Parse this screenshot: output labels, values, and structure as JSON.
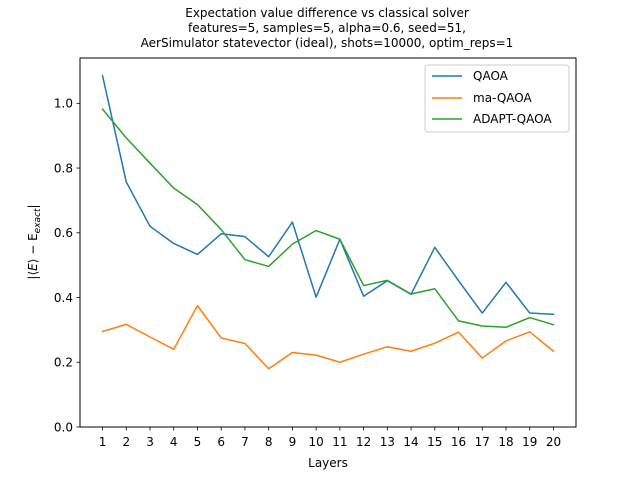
{
  "chart_data": {
    "type": "line",
    "title_lines": [
      "Expectation value difference vs classical solver",
      "features=5, samples=5, alpha=0.6, seed=51,",
      "AerSimulator statevector (ideal), shots=10000, optim_reps=1"
    ],
    "xlabel": "Layers",
    "ylabel": "|⟨E⟩ − E_exact|",
    "ylabel_parts": {
      "prefix": "|⟨",
      "e": "E",
      "mid": "⟩ − E",
      "sub": "exact",
      "suffix": "|"
    },
    "x": [
      1,
      2,
      3,
      4,
      5,
      6,
      7,
      8,
      9,
      10,
      11,
      12,
      13,
      14,
      15,
      16,
      17,
      18,
      19,
      20
    ],
    "xlim": [
      0.05,
      20.95
    ],
    "ylim": [
      0.0,
      1.14
    ],
    "yticks": [
      0.0,
      0.2,
      0.4,
      0.6,
      0.8,
      1.0
    ],
    "ytick_labels": [
      "0.0",
      "0.2",
      "0.4",
      "0.6",
      "0.8",
      "1.0"
    ],
    "grid": false,
    "legend_position": "top-right",
    "series": [
      {
        "name": "QAOA",
        "color": "#1f77b4",
        "values": [
          1.085,
          0.757,
          0.62,
          0.567,
          0.533,
          0.597,
          0.588,
          0.526,
          0.633,
          0.401,
          0.58,
          0.404,
          0.452,
          0.41,
          0.555,
          0.452,
          0.352,
          0.447,
          0.352,
          0.348
        ]
      },
      {
        "name": "ma-QAOA",
        "color": "#ff7f0e",
        "values": [
          0.295,
          0.317,
          0.278,
          0.24,
          0.375,
          0.275,
          0.258,
          0.18,
          0.23,
          0.222,
          0.2,
          0.225,
          0.248,
          0.234,
          0.259,
          0.293,
          0.213,
          0.266,
          0.294,
          0.234
        ]
      },
      {
        "name": "ADAPT-QAOA",
        "color": "#2ca02c",
        "values": [
          0.982,
          0.893,
          0.815,
          0.738,
          0.687,
          0.61,
          0.517,
          0.496,
          0.565,
          0.607,
          0.58,
          0.437,
          0.453,
          0.411,
          0.427,
          0.328,
          0.312,
          0.308,
          0.338,
          0.316
        ]
      }
    ]
  }
}
